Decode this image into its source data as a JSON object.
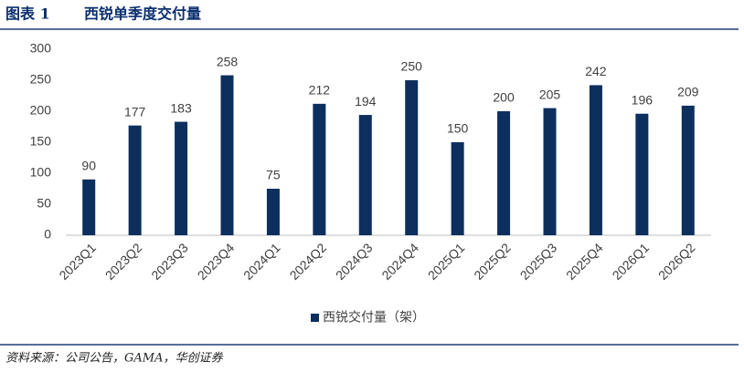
{
  "header": {
    "label": "图表 1",
    "title": "西锐单季度交付量"
  },
  "chart_data": {
    "type": "bar",
    "categories": [
      "2023Q1",
      "2023Q2",
      "2023Q3",
      "2023Q4",
      "2024Q1",
      "2024Q2",
      "2024Q3",
      "2024Q4",
      "2025Q1",
      "2025Q2",
      "2025Q3",
      "2025Q4",
      "2026Q1",
      "2026Q2"
    ],
    "series": [
      {
        "name": "西锐交付量（架）",
        "color": "#0c2f5e",
        "values": [
          90,
          177,
          183,
          258,
          75,
          212,
          194,
          250,
          150,
          200,
          205,
          242,
          196,
          209
        ]
      }
    ],
    "ylim": [
      0,
      300
    ],
    "yticks": [
      0,
      50,
      100,
      150,
      200,
      250,
      300
    ],
    "grid": false,
    "legend": "bottom"
  },
  "footer": {
    "source": "资料来源：公司公告，GAMA，华创证券"
  }
}
